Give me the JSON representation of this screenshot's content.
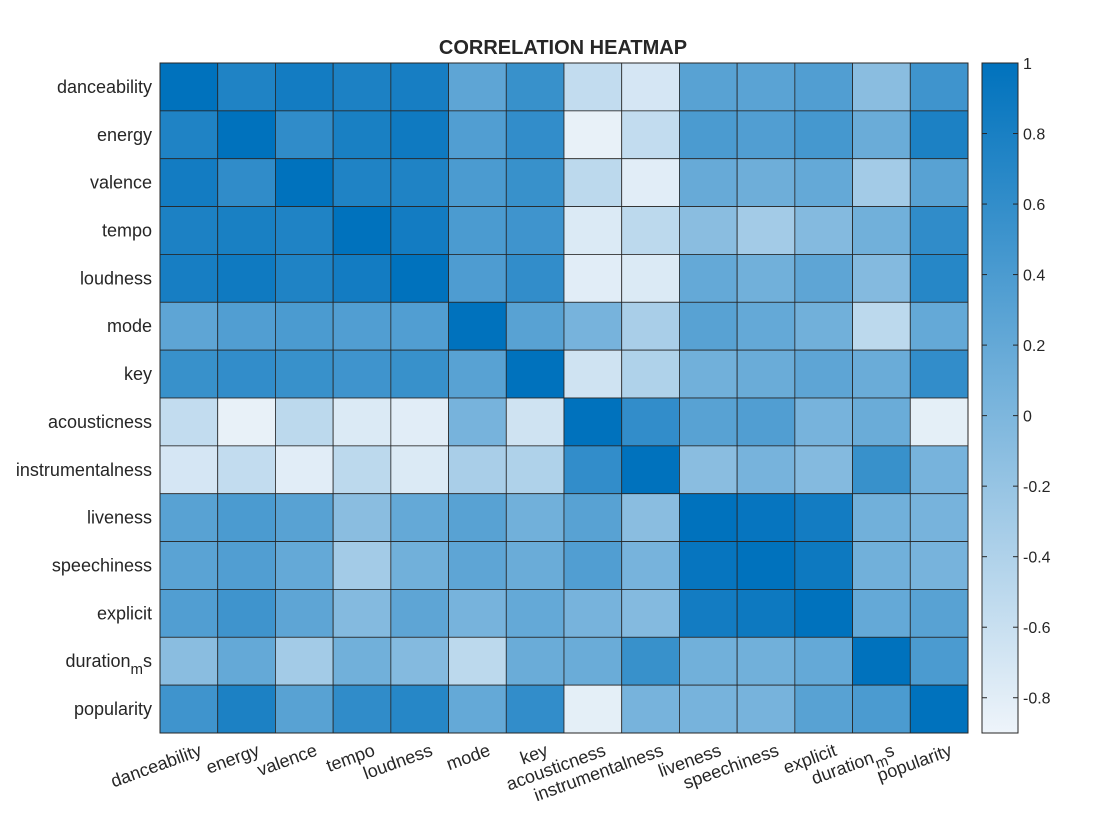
{
  "chart_data": {
    "type": "heatmap",
    "title": "CORRELATION HEATMAP",
    "row_labels": [
      "danceability",
      "energy",
      "valence",
      "tempo",
      "loudness",
      "mode",
      "key",
      "acousticness",
      "instrumentalness",
      "liveness",
      "speechiness",
      "explicit",
      "duration_ms",
      "popularity"
    ],
    "col_labels": [
      "danceability",
      "energy",
      "valence",
      "tempo",
      "loudness",
      "mode",
      "key",
      "acousticness",
      "instrumentalness",
      "liveness",
      "speechiness",
      "explicit",
      "duration_ms",
      "popularity"
    ],
    "values": [
      [
        1.0,
        0.75,
        0.85,
        0.78,
        0.82,
        0.25,
        0.55,
        -0.55,
        -0.7,
        0.3,
        0.28,
        0.35,
        -0.1,
        0.5
      ],
      [
        0.75,
        1.0,
        0.62,
        0.8,
        0.88,
        0.35,
        0.6,
        -0.85,
        -0.55,
        0.4,
        0.35,
        0.45,
        0.15,
        0.78
      ],
      [
        0.85,
        0.62,
        1.0,
        0.75,
        0.75,
        0.4,
        0.55,
        -0.5,
        -0.8,
        0.18,
        0.12,
        0.2,
        -0.3,
        0.3
      ],
      [
        0.78,
        0.8,
        0.75,
        1.0,
        0.85,
        0.4,
        0.5,
        -0.75,
        -0.5,
        -0.1,
        -0.3,
        -0.05,
        0.1,
        0.62
      ],
      [
        0.82,
        0.88,
        0.75,
        0.85,
        1.0,
        0.38,
        0.6,
        -0.8,
        -0.75,
        0.2,
        0.1,
        0.25,
        -0.05,
        0.7
      ],
      [
        0.25,
        0.35,
        0.4,
        0.35,
        0.35,
        1.0,
        0.3,
        0.05,
        -0.35,
        0.3,
        0.2,
        0.1,
        -0.5,
        0.2
      ],
      [
        0.55,
        0.6,
        0.55,
        0.5,
        0.55,
        0.3,
        1.0,
        -0.65,
        -0.4,
        0.1,
        0.15,
        0.25,
        0.15,
        0.6
      ],
      [
        -0.55,
        -0.85,
        -0.5,
        -0.75,
        -0.8,
        0.05,
        -0.65,
        1.0,
        0.6,
        0.3,
        0.35,
        0.05,
        0.15,
        -0.82
      ],
      [
        -0.7,
        -0.55,
        -0.8,
        -0.5,
        -0.75,
        -0.35,
        -0.4,
        0.6,
        1.0,
        -0.1,
        0.05,
        -0.05,
        0.55,
        0.05
      ],
      [
        0.3,
        0.4,
        0.3,
        -0.1,
        0.2,
        0.3,
        0.1,
        0.3,
        -0.1,
        1.0,
        0.95,
        0.85,
        0.1,
        0.05
      ],
      [
        0.28,
        0.35,
        0.2,
        -0.3,
        0.1,
        0.25,
        0.15,
        0.35,
        0.05,
        0.95,
        1.0,
        0.9,
        0.1,
        0.05
      ],
      [
        0.35,
        0.5,
        0.25,
        -0.05,
        0.25,
        0.05,
        0.2,
        0.05,
        -0.05,
        0.85,
        0.9,
        1.0,
        0.2,
        0.3
      ],
      [
        -0.1,
        0.2,
        -0.3,
        0.1,
        -0.05,
        -0.5,
        0.15,
        0.15,
        0.55,
        0.1,
        0.1,
        0.2,
        1.0,
        0.4
      ],
      [
        0.5,
        0.78,
        0.3,
        0.62,
        0.7,
        0.2,
        0.6,
        -0.82,
        0.05,
        0.05,
        0.05,
        0.3,
        0.4,
        1.0
      ]
    ],
    "colorbar": {
      "min": -0.9,
      "max": 1.0,
      "ticks": [
        1,
        0.8,
        0.6,
        0.4,
        0.2,
        0,
        -0.2,
        -0.4,
        -0.6,
        -0.8
      ],
      "tick_labels": [
        "1",
        "0.8",
        "0.6",
        "0.4",
        "0.2",
        "0",
        "-0.2",
        "-0.4",
        "-0.6",
        "-0.8"
      ],
      "color_low": "#eef4fa",
      "color_high": "#0072bd"
    },
    "grid": true
  }
}
